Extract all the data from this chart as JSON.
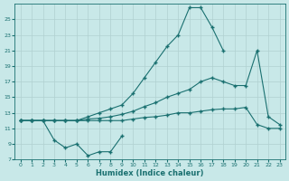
{
  "x_all": [
    0,
    1,
    2,
    3,
    4,
    5,
    6,
    7,
    8,
    9,
    10,
    11,
    12,
    13,
    14,
    15,
    16,
    17,
    18,
    19,
    20,
    21,
    22,
    23
  ],
  "line_peak_x": [
    0,
    1,
    2,
    3,
    4,
    5,
    6,
    7,
    8,
    9,
    10,
    11,
    12,
    13,
    14,
    15,
    16,
    17,
    18
  ],
  "line_peak_y": [
    12,
    12,
    12,
    12,
    12,
    12,
    12.5,
    13,
    13.5,
    14,
    15.5,
    17.5,
    19.5,
    21.5,
    23,
    26.5,
    26.5,
    24,
    21
  ],
  "line_diag_x": [
    0,
    1,
    2,
    3,
    4,
    5,
    6,
    7,
    8,
    9,
    10,
    11,
    12,
    13,
    14,
    15,
    16,
    17,
    18,
    19,
    20,
    21,
    22,
    23
  ],
  "line_diag_y": [
    12,
    12,
    12,
    12,
    12,
    12,
    12.2,
    12.3,
    12.5,
    12.8,
    13.2,
    13.8,
    14.3,
    15,
    15.5,
    16,
    17,
    17.5,
    17,
    16.5,
    16.5,
    21,
    12.5,
    11.5
  ],
  "line_flat_x": [
    0,
    1,
    2,
    3,
    4,
    5,
    6,
    7,
    8,
    9,
    10,
    11,
    12,
    13,
    14,
    15,
    16,
    17,
    18,
    19,
    20,
    21,
    22,
    23
  ],
  "line_flat_y": [
    12,
    12,
    12,
    12,
    12,
    12,
    12,
    12,
    12,
    12,
    12.2,
    12.4,
    12.5,
    12.7,
    13,
    13,
    13.2,
    13.4,
    13.5,
    13.5,
    13.7,
    11.5,
    11,
    11
  ],
  "line_dip_x": [
    0,
    1,
    2,
    3,
    4,
    5,
    6,
    7,
    8,
    9
  ],
  "line_dip_y": [
    12,
    12,
    12,
    9.5,
    8.5,
    9,
    7.5,
    8,
    8,
    10
  ],
  "bg_color": "#c8e8e8",
  "line_color": "#1a7070",
  "grid_color": "#b0d0d0",
  "xlabel": "Humidex (Indice chaleur)",
  "ylim": [
    7,
    27
  ],
  "xlim": [
    -0.5,
    23.5
  ],
  "yticks": [
    7,
    9,
    11,
    13,
    15,
    17,
    19,
    21,
    23,
    25
  ],
  "xticks": [
    0,
    1,
    2,
    3,
    4,
    5,
    6,
    7,
    8,
    9,
    10,
    11,
    12,
    13,
    14,
    15,
    16,
    17,
    18,
    19,
    20,
    21,
    22,
    23
  ]
}
